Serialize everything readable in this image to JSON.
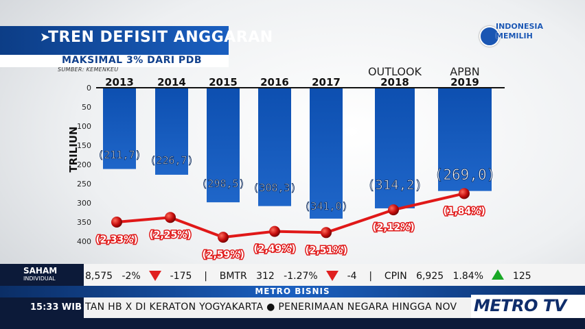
{
  "title": "TREN DEFISIT ANGGARAN",
  "subtitle": "MAKSIMAL 3% DARI PDB",
  "source": "SUMBER: KEMENKEU",
  "logo": {
    "line1": "INDONESIA",
    "line2": "MEMILIH",
    "color": "#1a56b3"
  },
  "chart_data": {
    "type": "bar",
    "ylabel": "TRILIUN",
    "ylim": [
      0,
      400
    ],
    "yticks": [
      0,
      50,
      100,
      150,
      200,
      250,
      300,
      350,
      400
    ],
    "y_inverted": true,
    "categories": [
      {
        "top": "",
        "year": "2013"
      },
      {
        "top": "",
        "year": "2014"
      },
      {
        "top": "",
        "year": "2015"
      },
      {
        "top": "",
        "year": "2016"
      },
      {
        "top": "",
        "year": "2017"
      },
      {
        "top": "OUTLOOK",
        "year": "2018"
      },
      {
        "top": "APBN",
        "year": "2019"
      }
    ],
    "values": [
      211.7,
      226.7,
      298.5,
      308.3,
      341.0,
      314.2,
      269.0
    ],
    "value_labels": [
      "(211,7)",
      "(226,7)",
      "(298,5)",
      "(308,3)",
      "(341,0)",
      "(314,2)",
      "(269,0)"
    ],
    "bar_color": "#1f66c9",
    "line_series": {
      "values": [
        2.33,
        2.25,
        2.59,
        2.49,
        2.51,
        2.12,
        1.84
      ],
      "labels": [
        "(2,33%)",
        "(2,25%)",
        "(2,59%)",
        "(2,49%)",
        "(2,51%)",
        "(2,12%)",
        "(1,84%)"
      ],
      "color": "#e01818"
    }
  },
  "ticker": {
    "label": "SAHAM",
    "sublabel": "INDIVIDUAL",
    "items": [
      {
        "value": "8,575",
        "pct": "-2%",
        "dir": "down",
        "change": "-175"
      },
      {
        "code": "BMTR",
        "value": "312",
        "pct": "-1.27%",
        "dir": "down",
        "change": "-4"
      },
      {
        "code": "CPIN",
        "value": "6,925",
        "pct": "1.84%",
        "dir": "up",
        "change": "125"
      }
    ]
  },
  "program": "METRO BISNIS",
  "time": "15:33 WIB",
  "news": "TAN HB X DI KERATON YOGYAKARTA ● PENERIMAAN NEGARA HINGGA NOV",
  "channel": "METRO TV"
}
